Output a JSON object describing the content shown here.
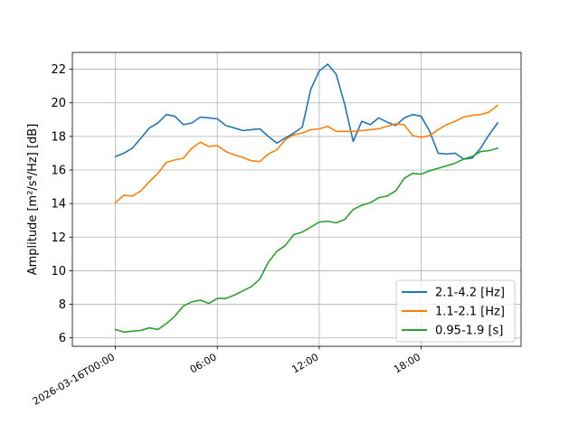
{
  "chart_data": {
    "type": "line",
    "title": "",
    "xlabel": "",
    "ylabel": "Amplitude [m²/s⁴/Hz] [dB]",
    "x_start": "2026-03-16T00:00",
    "x_step_minutes": 30,
    "xlim": [
      "2026-03-15T21:28",
      "2026-03-16T23:53"
    ],
    "ylim": [
      5.5,
      23.0
    ],
    "y_ticks": [
      6,
      8,
      10,
      12,
      14,
      16,
      18,
      20,
      22
    ],
    "x_ticks": [
      {
        "value": "2026-03-16T00:00",
        "label": "2026-03-16T00:00"
      },
      {
        "value": "2026-03-16T06:00",
        "label": "06:00"
      },
      {
        "value": "2026-03-16T12:00",
        "label": "12:00"
      },
      {
        "value": "2026-03-16T18:00",
        "label": "18:00"
      }
    ],
    "grid": true,
    "legend_position": "lower-right",
    "series": [
      {
        "name": "2.1-4.2 [Hz]",
        "color": "#1f77b4",
        "values": [
          16.8,
          17.0,
          17.3,
          17.9,
          18.5,
          18.8,
          19.3,
          19.2,
          18.7,
          18.8,
          19.15,
          19.1,
          19.05,
          18.65,
          18.5,
          18.35,
          18.4,
          18.45,
          18.0,
          17.6,
          17.9,
          18.2,
          18.55,
          20.8,
          21.9,
          22.3,
          21.7,
          19.9,
          17.7,
          18.9,
          18.7,
          19.1,
          18.85,
          18.65,
          19.1,
          19.3,
          19.2,
          18.3,
          17.0,
          16.95,
          17.0,
          16.65,
          16.7,
          17.3,
          18.1,
          18.8
        ]
      },
      {
        "name": "1.1-2.1 [Hz]",
        "color": "#ff7f0e",
        "values": [
          14.05,
          14.5,
          14.45,
          14.75,
          15.3,
          15.8,
          16.45,
          16.6,
          16.7,
          17.3,
          17.65,
          17.4,
          17.45,
          17.1,
          16.9,
          16.75,
          16.55,
          16.5,
          16.95,
          17.2,
          17.8,
          18.1,
          18.2,
          18.4,
          18.45,
          18.6,
          18.3,
          18.3,
          18.3,
          18.35,
          18.4,
          18.45,
          18.6,
          18.75,
          18.7,
          18.05,
          17.95,
          18.05,
          18.4,
          18.7,
          18.9,
          19.15,
          19.25,
          19.3,
          19.45,
          19.85
        ]
      },
      {
        "name": "0.95-1.9 [s]",
        "color": "#2ca02c",
        "values": [
          6.5,
          6.35,
          6.4,
          6.45,
          6.6,
          6.5,
          6.85,
          7.3,
          7.9,
          8.15,
          8.25,
          8.05,
          8.35,
          8.35,
          8.55,
          8.8,
          9.05,
          9.5,
          10.5,
          11.15,
          11.5,
          12.15,
          12.3,
          12.6,
          12.9,
          12.95,
          12.85,
          13.05,
          13.65,
          13.9,
          14.05,
          14.35,
          14.45,
          14.75,
          15.5,
          15.8,
          15.75,
          15.95,
          16.1,
          16.25,
          16.4,
          16.65,
          16.8,
          17.1,
          17.15,
          17.3
        ]
      }
    ]
  }
}
